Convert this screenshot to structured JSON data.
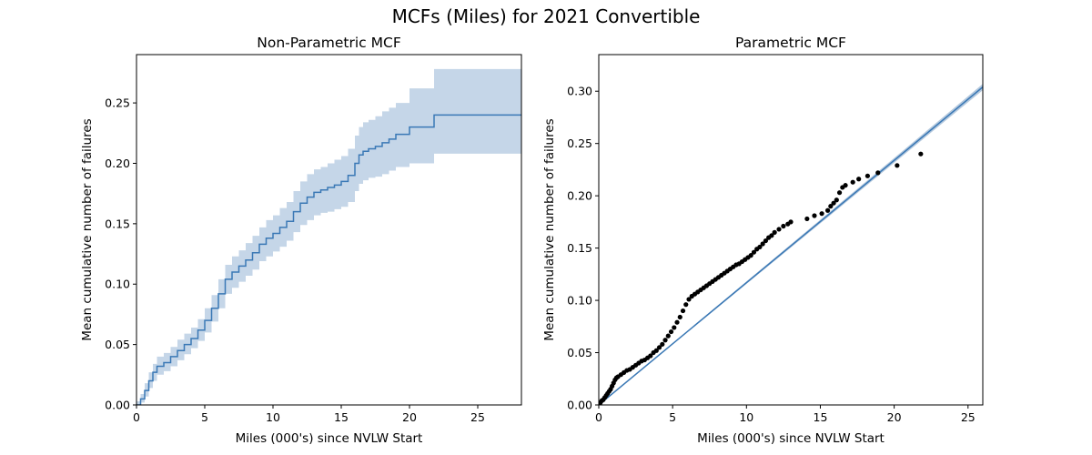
{
  "figure": {
    "title": "MCFs (Miles) for 2021 Convertible"
  },
  "chart_data": [
    {
      "type": "line",
      "title": "Non-Parametric MCF",
      "xlabel": "Miles (000's) since NVLW Start",
      "ylabel": "Mean cumulative number of failures",
      "xlim": [
        0,
        28.2
      ],
      "ylim": [
        0,
        0.29
      ],
      "xticks": [
        "0",
        "5",
        "10",
        "15",
        "20",
        "25"
      ],
      "yticks": [
        "0.00",
        "0.05",
        "0.10",
        "0.15",
        "0.20",
        "0.25"
      ],
      "grid": false,
      "colors": {
        "line": "#3a78b5",
        "band": "#c5d6e8"
      },
      "series": [
        {
          "style": "step",
          "x": [
            0,
            0.3,
            0.6,
            0.9,
            1.2,
            1.5,
            2,
            2.5,
            3,
            3.5,
            4,
            4.5,
            5,
            5.5,
            6,
            6.5,
            7,
            7.5,
            8,
            8.5,
            9,
            9.5,
            10,
            10.5,
            11,
            11.5,
            12,
            12.5,
            13,
            13.5,
            14,
            14.5,
            15,
            15.5,
            16,
            16.3,
            16.6,
            17,
            17.5,
            18,
            18.5,
            19,
            20,
            21.8,
            28.2
          ],
          "y": [
            0,
            0.005,
            0.012,
            0.02,
            0.027,
            0.032,
            0.035,
            0.04,
            0.045,
            0.05,
            0.055,
            0.062,
            0.07,
            0.08,
            0.092,
            0.104,
            0.11,
            0.115,
            0.12,
            0.126,
            0.133,
            0.138,
            0.142,
            0.147,
            0.152,
            0.16,
            0.167,
            0.172,
            0.176,
            0.178,
            0.18,
            0.182,
            0.185,
            0.19,
            0.2,
            0.207,
            0.21,
            0.212,
            0.214,
            0.217,
            0.22,
            0.224,
            0.23,
            0.24,
            0.24
          ],
          "lower": [
            0,
            0.002,
            0.007,
            0.014,
            0.02,
            0.025,
            0.028,
            0.032,
            0.037,
            0.042,
            0.047,
            0.053,
            0.06,
            0.069,
            0.08,
            0.092,
            0.097,
            0.102,
            0.107,
            0.112,
            0.119,
            0.123,
            0.127,
            0.131,
            0.136,
            0.143,
            0.149,
            0.153,
            0.157,
            0.159,
            0.16,
            0.162,
            0.164,
            0.168,
            0.177,
            0.183,
            0.186,
            0.188,
            0.189,
            0.191,
            0.194,
            0.197,
            0.2,
            0.208,
            0.208
          ],
          "upper": [
            0.003,
            0.009,
            0.018,
            0.027,
            0.034,
            0.04,
            0.043,
            0.048,
            0.054,
            0.059,
            0.064,
            0.071,
            0.08,
            0.091,
            0.104,
            0.116,
            0.123,
            0.128,
            0.134,
            0.14,
            0.147,
            0.153,
            0.157,
            0.163,
            0.168,
            0.177,
            0.185,
            0.191,
            0.195,
            0.197,
            0.2,
            0.203,
            0.206,
            0.212,
            0.223,
            0.23,
            0.234,
            0.236,
            0.239,
            0.243,
            0.246,
            0.25,
            0.262,
            0.278,
            0.278
          ]
        }
      ]
    },
    {
      "type": "scatter",
      "title": "Parametric MCF",
      "xlabel": "Miles (000's) since NVLW Start",
      "ylabel": "Mean cumulative number of failures",
      "xlim": [
        0,
        26
      ],
      "ylim": [
        0,
        0.335
      ],
      "xticks": [
        "0",
        "5",
        "10",
        "15",
        "20",
        "25"
      ],
      "yticks": [
        "0.00",
        "0.05",
        "0.10",
        "0.15",
        "0.20",
        "0.25",
        "0.30"
      ],
      "grid": false,
      "colors": {
        "fit": "#3a78b5",
        "band": "#b5c9de",
        "points": "#000000"
      },
      "fit": {
        "x": [
          0,
          26
        ],
        "y": [
          0,
          0.304
        ],
        "band_halfwidth_end": 0.003
      },
      "series": [
        {
          "x": [
            0.1,
            0.2,
            0.3,
            0.4,
            0.5,
            0.6,
            0.7,
            0.8,
            0.9,
            1.0,
            1.1,
            1.2,
            1.3,
            1.5,
            1.7,
            1.9,
            2.1,
            2.3,
            2.5,
            2.7,
            2.9,
            3.1,
            3.3,
            3.5,
            3.7,
            3.9,
            4.1,
            4.3,
            4.5,
            4.7,
            4.9,
            5.1,
            5.3,
            5.5,
            5.7,
            5.9,
            6.1,
            6.3,
            6.5,
            6.7,
            6.9,
            7.1,
            7.3,
            7.5,
            7.7,
            7.9,
            8.1,
            8.3,
            8.5,
            8.7,
            8.9,
            9.1,
            9.3,
            9.5,
            9.7,
            9.9,
            10.1,
            10.3,
            10.5,
            10.7,
            10.9,
            11.1,
            11.3,
            11.5,
            11.7,
            11.9,
            12.2,
            12.5,
            12.8,
            13.0,
            14.1,
            14.6,
            15.1,
            15.5,
            15.7,
            15.9,
            16.1,
            16.3,
            16.5,
            16.7,
            17.2,
            17.6,
            18.2,
            18.9,
            20.2,
            21.8
          ],
          "y": [
            0.002,
            0.004,
            0.005,
            0.007,
            0.009,
            0.011,
            0.013,
            0.015,
            0.018,
            0.021,
            0.024,
            0.026,
            0.027,
            0.029,
            0.031,
            0.033,
            0.034,
            0.036,
            0.038,
            0.04,
            0.042,
            0.043,
            0.045,
            0.047,
            0.05,
            0.052,
            0.055,
            0.058,
            0.062,
            0.066,
            0.07,
            0.074,
            0.079,
            0.084,
            0.09,
            0.096,
            0.101,
            0.104,
            0.106,
            0.108,
            0.11,
            0.112,
            0.114,
            0.116,
            0.118,
            0.12,
            0.122,
            0.124,
            0.126,
            0.128,
            0.13,
            0.132,
            0.134,
            0.135,
            0.137,
            0.139,
            0.141,
            0.143,
            0.146,
            0.149,
            0.151,
            0.154,
            0.157,
            0.16,
            0.162,
            0.165,
            0.168,
            0.171,
            0.173,
            0.175,
            0.178,
            0.181,
            0.183,
            0.186,
            0.19,
            0.193,
            0.196,
            0.203,
            0.208,
            0.21,
            0.213,
            0.216,
            0.219,
            0.222,
            0.229,
            0.24
          ]
        }
      ]
    }
  ]
}
